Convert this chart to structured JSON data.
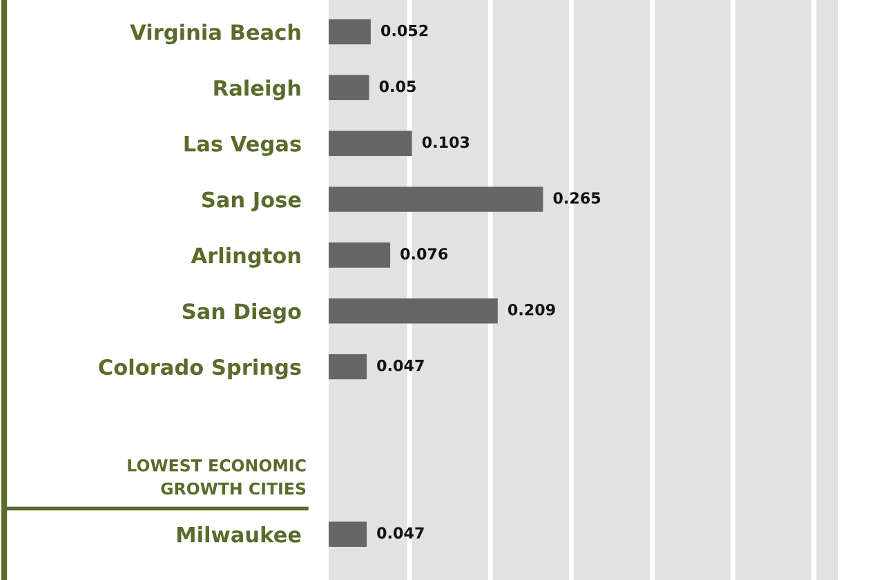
{
  "chart_data": {
    "type": "bar",
    "orientation": "horizontal",
    "categories": [
      "Virginia Beach",
      "Raleigh",
      "Las Vegas",
      "San Jose",
      "Arlington",
      "San Diego",
      "Colorado Springs",
      null,
      null,
      "Milwaukee"
    ],
    "values": [
      0.052,
      0.05,
      0.103,
      0.265,
      0.076,
      0.209,
      0.047,
      null,
      null,
      0.047
    ],
    "color": "#666666",
    "data_labels": true,
    "grid": "x",
    "xlim": [
      0,
      0.63
    ],
    "xticks": [
      {
        "value": 0.1,
        "label": null
      },
      {
        "value": 0.2,
        "label": null
      },
      {
        "value": 0.3,
        "label": null
      },
      {
        "value": 0.4,
        "label": null
      },
      {
        "value": 0.5,
        "label": null
      },
      {
        "value": 0.6,
        "label": null
      }
    ],
    "tick_labels": "y",
    "annotations": [
      "LOWEST ECONOMIC\nGROWTH CITIES"
    ]
  }
}
